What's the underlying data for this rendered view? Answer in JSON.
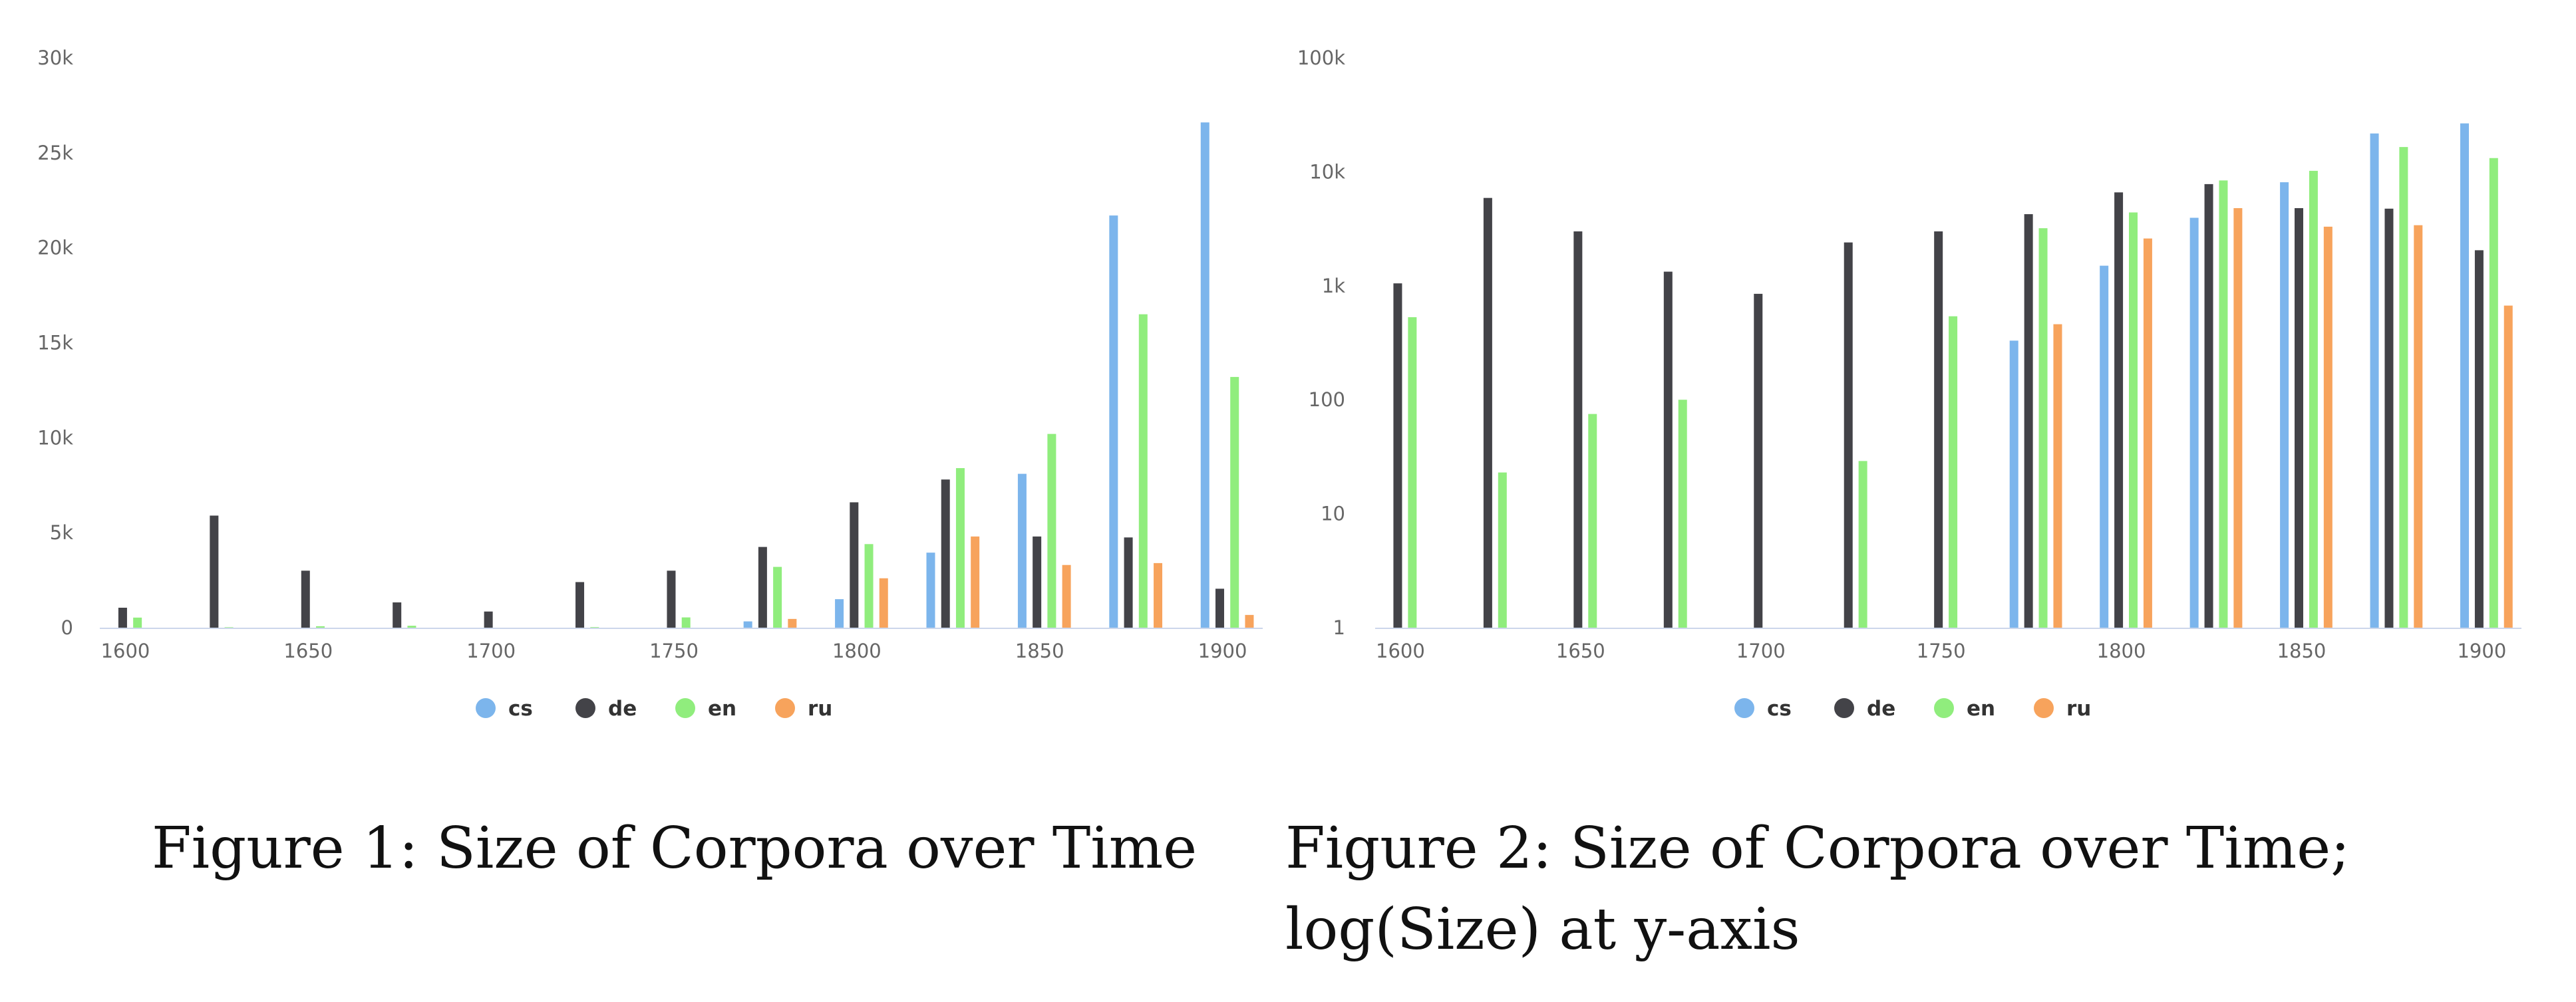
{
  "colors": {
    "cs": "#7cb5ec",
    "de": "#434348",
    "en": "#90ed7d",
    "ru": "#f7a35c"
  },
  "chart_data": [
    {
      "type": "bar",
      "scale": "linear",
      "categories": [
        1600,
        1625,
        1650,
        1675,
        1700,
        1725,
        1750,
        1775,
        1800,
        1825,
        1850,
        1875,
        1900
      ],
      "x_ticks": [
        "1600",
        "1650",
        "1700",
        "1750",
        "1800",
        "1850",
        "1900"
      ],
      "ylim": [
        0,
        30000
      ],
      "y_ticks": [
        "0",
        "5k",
        "10k",
        "15k",
        "20k",
        "25k",
        "30k"
      ],
      "legend_position": "bottom-center",
      "series": [
        {
          "name": "cs",
          "values": [
            0,
            0,
            0,
            0,
            0,
            0,
            0,
            330,
            1500,
            3950,
            8100,
            21700,
            26600
          ]
        },
        {
          "name": "de",
          "values": [
            1050,
            5900,
            3000,
            1330,
            850,
            2400,
            3000,
            4250,
            6600,
            7800,
            4800,
            4750,
            2050
          ]
        },
        {
          "name": "en",
          "values": [
            530,
            23,
            75,
            100,
            0,
            29,
            540,
            3200,
            4400,
            8400,
            10200,
            16500,
            13200
          ]
        },
        {
          "name": "ru",
          "values": [
            0,
            0,
            0,
            0,
            0,
            0,
            0,
            460,
            2600,
            4800,
            3300,
            3400,
            670
          ]
        }
      ]
    },
    {
      "type": "bar",
      "scale": "log",
      "categories": [
        1600,
        1625,
        1650,
        1675,
        1700,
        1725,
        1750,
        1775,
        1800,
        1825,
        1850,
        1875,
        1900
      ],
      "x_ticks": [
        "1600",
        "1650",
        "1700",
        "1750",
        "1800",
        "1850",
        "1900"
      ],
      "ylim": [
        1,
        100000
      ],
      "y_ticks": [
        "1",
        "10",
        "100",
        "1k",
        "10k",
        "100k"
      ],
      "legend_position": "bottom-center",
      "series": [
        {
          "name": "cs",
          "values": [
            0,
            0,
            0,
            0,
            0,
            0,
            0,
            330,
            1500,
            3950,
            8100,
            21700,
            26600
          ]
        },
        {
          "name": "de",
          "values": [
            1050,
            5900,
            3000,
            1330,
            850,
            2400,
            3000,
            4250,
            6600,
            7800,
            4800,
            4750,
            2050
          ]
        },
        {
          "name": "en",
          "values": [
            530,
            23,
            75,
            100,
            0,
            29,
            540,
            3200,
            4400,
            8400,
            10200,
            16500,
            13200
          ]
        },
        {
          "name": "ru",
          "values": [
            0,
            0,
            0,
            0,
            0,
            0,
            0,
            460,
            2600,
            4800,
            3300,
            3400,
            670
          ]
        }
      ]
    }
  ],
  "captions": {
    "figure1": "Figure 1: Size of Corpora over Time",
    "figure2": "Figure 2: Size of Corpora over Time; log(Size) at y-axis"
  }
}
